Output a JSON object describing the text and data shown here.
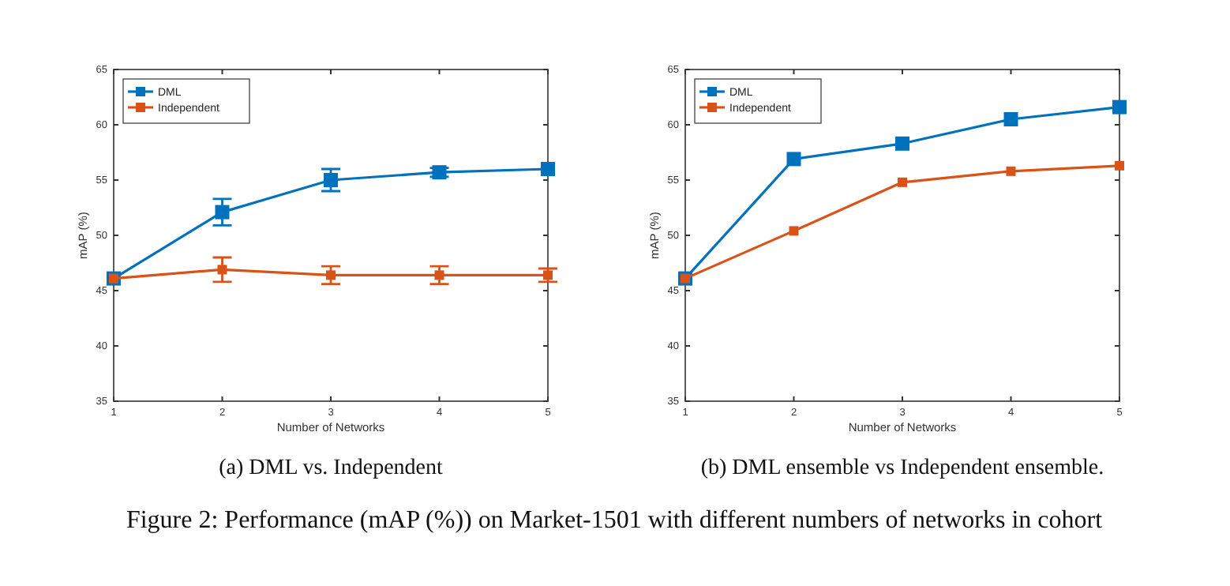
{
  "chart_data": [
    {
      "type": "line",
      "xlabel": "Number of Networks",
      "ylabel": "mAP (%)",
      "x": [
        1,
        2,
        3,
        4,
        5
      ],
      "xlim": [
        1,
        5
      ],
      "xticks": [
        1,
        2,
        3,
        4,
        5
      ],
      "ylim": [
        35,
        65
      ],
      "yticks": [
        35,
        40,
        45,
        50,
        55,
        60,
        65
      ],
      "grid": false,
      "legend": "top left",
      "marker": "square",
      "line_style": "solid",
      "series": [
        {
          "name": "DML",
          "color": "#0072bd",
          "values": [
            46.1,
            52.1,
            55.0,
            55.7,
            56.0
          ],
          "errors": [
            null,
            1.2,
            1.0,
            0.4,
            null
          ]
        },
        {
          "name": "Independent",
          "color": "#d95319",
          "values": [
            46.1,
            46.9,
            46.4,
            46.4,
            46.4
          ],
          "errors": [
            null,
            1.1,
            0.8,
            0.8,
            0.6
          ]
        }
      ],
      "annotations": [
        "(a) DML vs.  Independent"
      ]
    },
    {
      "type": "line",
      "xlabel": "Number of Networks",
      "ylabel": "mAP (%)",
      "x": [
        1,
        2,
        3,
        4,
        5
      ],
      "xlim": [
        1,
        5
      ],
      "xticks": [
        1,
        2,
        3,
        4,
        5
      ],
      "ylim": [
        35,
        65
      ],
      "yticks": [
        35,
        40,
        45,
        50,
        55,
        60,
        65
      ],
      "grid": false,
      "legend": "top left",
      "marker": "square",
      "line_style": "solid",
      "series": [
        {
          "name": "DML",
          "color": "#0072bd",
          "values": [
            46.1,
            56.9,
            58.3,
            60.5,
            61.6
          ]
        },
        {
          "name": "Independent",
          "color": "#d95319",
          "values": [
            46.1,
            50.4,
            54.8,
            55.8,
            56.3
          ]
        }
      ],
      "annotations": [
        "(b) DML ensemble vs Independent ensemble.",
        "Figure 2: Performance (mAP (%)) on Market-1501 with different numbers of networks in cohort"
      ]
    }
  ]
}
